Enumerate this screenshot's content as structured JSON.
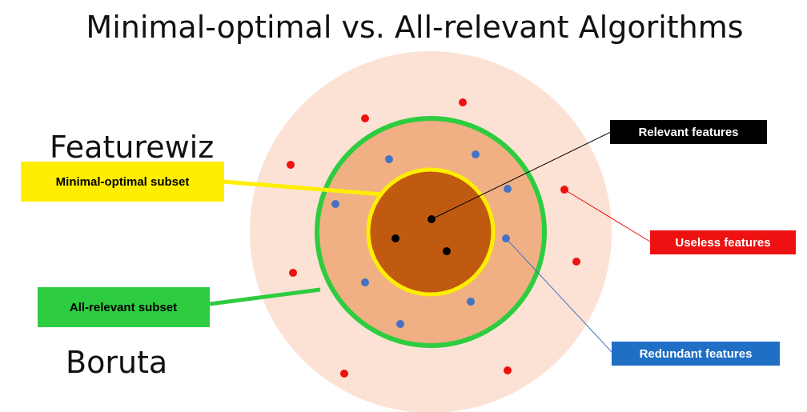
{
  "title": "Minimal-optimal vs. All-relevant Algorithms",
  "labels": {
    "featurewiz": "Featurewiz",
    "boruta": "Boruta"
  },
  "callouts": {
    "minimal": "Minimal-optimal subset",
    "allrelevant": "All-relevant subset",
    "relevant": "Relevant features",
    "useless": "Useless features",
    "redundant": "Redundant features"
  }
}
